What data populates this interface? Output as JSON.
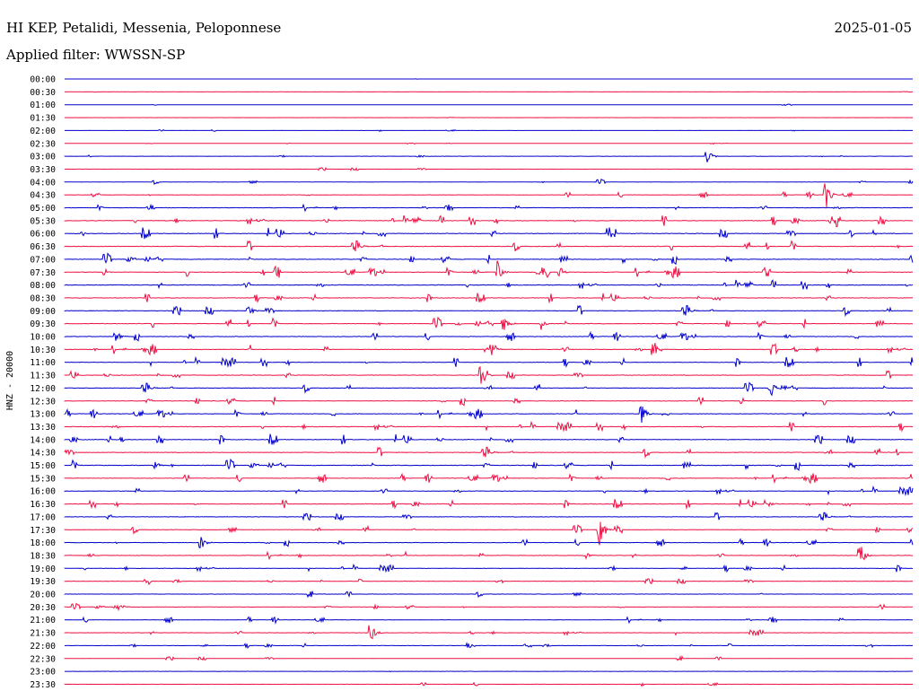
{
  "header": {
    "station": "HI KEP, Petalidi, Messenia, Peloponnese",
    "date": "2025-01-05",
    "filter": "Applied filter: WWSSN-SP"
  },
  "colors": {
    "trace_a": "#0000cc",
    "trace_b": "#ee1144",
    "background": "#ffffff"
  },
  "chart_data": {
    "type": "line",
    "ylabel": "HNZ - 20000",
    "row_labels": [
      "00:00",
      "00:30",
      "01:00",
      "01:30",
      "02:00",
      "02:30",
      "03:00",
      "03:30",
      "04:00",
      "04:30",
      "05:00",
      "05:30",
      "06:00",
      "06:30",
      "07:00",
      "07:30",
      "08:00",
      "08:30",
      "09:00",
      "09:30",
      "10:00",
      "10:30",
      "11:00",
      "11:30",
      "12:00",
      "12:30",
      "13:00",
      "13:30",
      "14:00",
      "14:30",
      "15:00",
      "15:30",
      "16:00",
      "16:30",
      "17:00",
      "17:30",
      "18:00",
      "18:30",
      "19:00",
      "19:30",
      "20:00",
      "20:30",
      "21:00",
      "21:30",
      "22:00",
      "22:30",
      "23:00",
      "23:30"
    ],
    "activity_level": [
      0.2,
      0.2,
      0.25,
      0.2,
      0.3,
      0.3,
      0.5,
      0.5,
      0.7,
      0.9,
      1.0,
      1.6,
      1.6,
      1.6,
      1.5,
      1.5,
      1.6,
      1.3,
      1.5,
      1.6,
      1.3,
      1.4,
      1.4,
      1.3,
      1.4,
      1.4,
      1.3,
      1.4,
      1.5,
      1.5,
      1.5,
      1.3,
      1.3,
      1.3,
      1.2,
      1.2,
      1.1,
      1.1,
      1.1,
      0.9,
      0.9,
      0.9,
      0.9,
      0.9,
      0.8,
      0.6,
      0.5,
      0.6
    ],
    "events": [
      {
        "row": "03:00",
        "minute": 22.7,
        "amplitude": 12
      },
      {
        "row": "04:30",
        "minute": 26.9,
        "amplitude": 22
      },
      {
        "row": "07:30",
        "minute": 15.3,
        "amplitude": 14
      },
      {
        "row": "07:30",
        "minute": 17.5,
        "amplitude": 8
      },
      {
        "row": "09:00",
        "minute": 6.5,
        "amplitude": 7
      },
      {
        "row": "09:30",
        "minute": 15.5,
        "amplitude": 12
      },
      {
        "row": "09:30",
        "minute": 16.8,
        "amplitude": 12
      },
      {
        "row": "10:00",
        "minute": 1.8,
        "amplitude": 8
      },
      {
        "row": "10:30",
        "minute": 15.1,
        "amplitude": 12
      },
      {
        "row": "10:30",
        "minute": 20.8,
        "amplitude": 14
      },
      {
        "row": "11:30",
        "minute": 14.7,
        "amplitude": 16
      },
      {
        "row": "12:00",
        "minute": 25.0,
        "amplitude": 12
      },
      {
        "row": "13:00",
        "minute": 20.4,
        "amplitude": 14
      },
      {
        "row": "15:00",
        "minute": 3.2,
        "amplitude": 6
      },
      {
        "row": "16:30",
        "minute": 24.8,
        "amplitude": 8
      },
      {
        "row": "17:30",
        "minute": 18.9,
        "amplitude": 22
      },
      {
        "row": "18:00",
        "minute": 4.8,
        "amplitude": 10
      },
      {
        "row": "18:30",
        "minute": 18.4,
        "amplitude": 8
      },
      {
        "row": "18:30",
        "minute": 28.1,
        "amplitude": 22
      },
      {
        "row": "20:30",
        "minute": 1.9,
        "amplitude": 6
      },
      {
        "row": "21:30",
        "minute": 10.8,
        "amplitude": 18
      }
    ]
  }
}
